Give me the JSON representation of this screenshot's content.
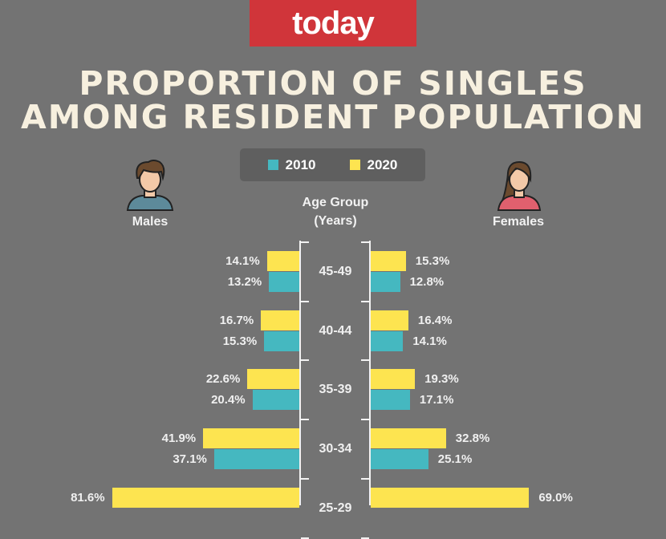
{
  "logo_text": "today",
  "chart_data": {
    "type": "bar",
    "title": [
      "PROPORTION OF SINGLES",
      "AMONG RESIDENT POPULATION"
    ],
    "axis_label": [
      "Age Group",
      "(Years)"
    ],
    "left_label": "Males",
    "right_label": "Females",
    "legend": [
      {
        "name": "2010",
        "color": "#45b8c0"
      },
      {
        "name": "2020",
        "color": "#fde450"
      }
    ],
    "unit": "%",
    "categories": [
      "45-49",
      "40-44",
      "35-39",
      "30-34",
      "25-29"
    ],
    "males": {
      "2020": [
        14.1,
        16.7,
        22.6,
        41.9,
        81.6
      ],
      "2010": [
        13.2,
        15.3,
        20.4,
        37.1,
        null
      ]
    },
    "females": {
      "2020": [
        15.3,
        16.4,
        19.3,
        32.8,
        69.0
      ],
      "2010": [
        12.8,
        14.1,
        17.1,
        25.1,
        null
      ]
    }
  }
}
